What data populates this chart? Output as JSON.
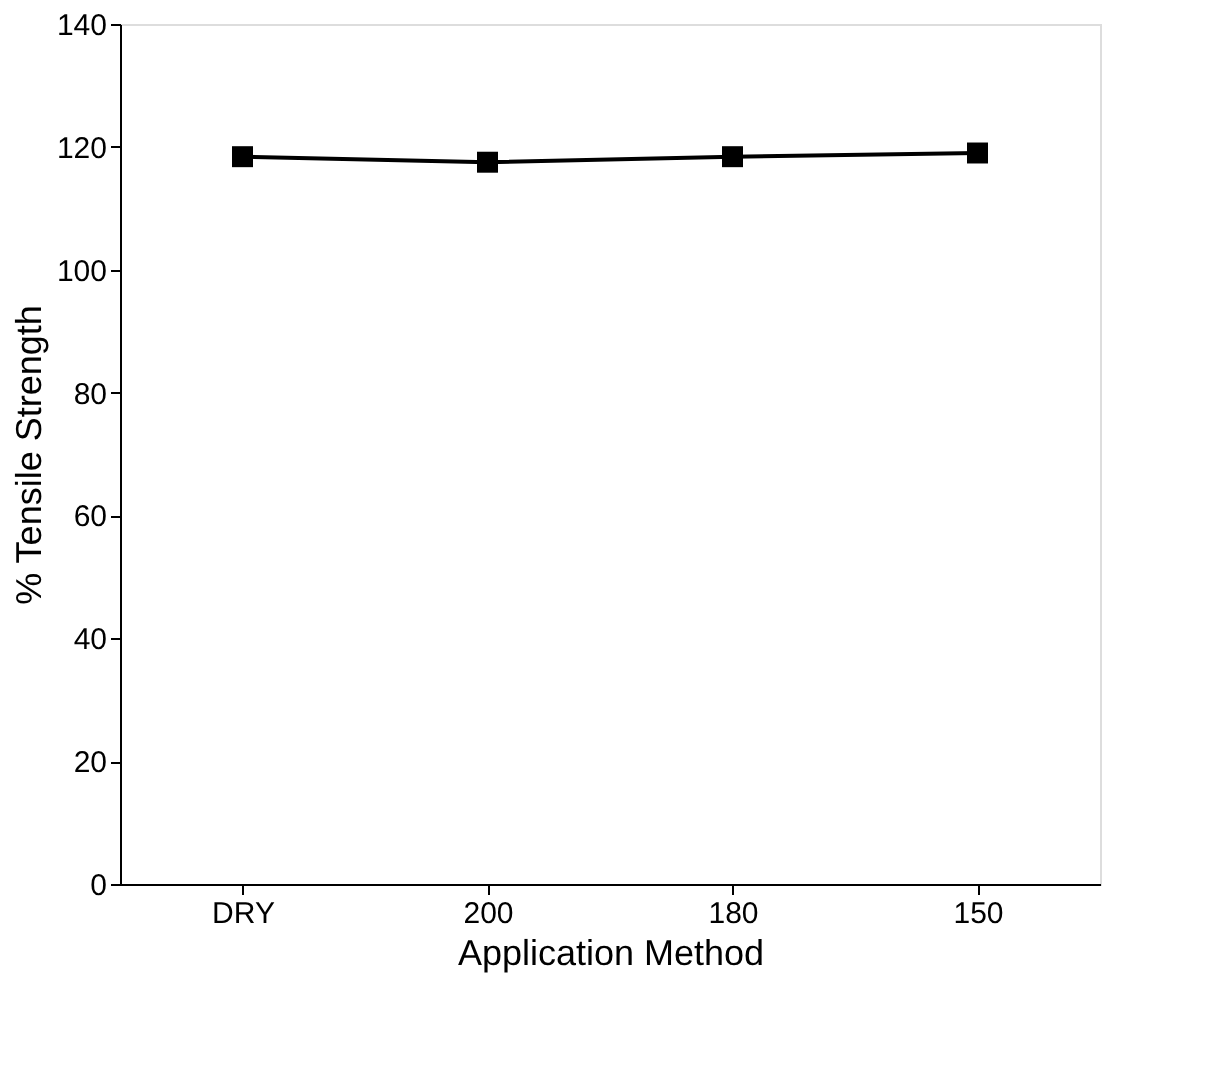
{
  "chart_data": {
    "type": "line",
    "xlabel": "Application Method",
    "ylabel": "% Tensile Strength",
    "categories": [
      "DRY",
      "200",
      "180",
      "150"
    ],
    "series": [
      {
        "color": "#000000",
        "values": [
          118.4,
          117.5,
          118.4,
          119
        ]
      }
    ],
    "ylim": [
      0,
      140
    ],
    "yticks": [
      0,
      20,
      40,
      60,
      80,
      100,
      120,
      140
    ],
    "marker": "square",
    "line_style": "solid",
    "grid": false,
    "legend": false
  }
}
